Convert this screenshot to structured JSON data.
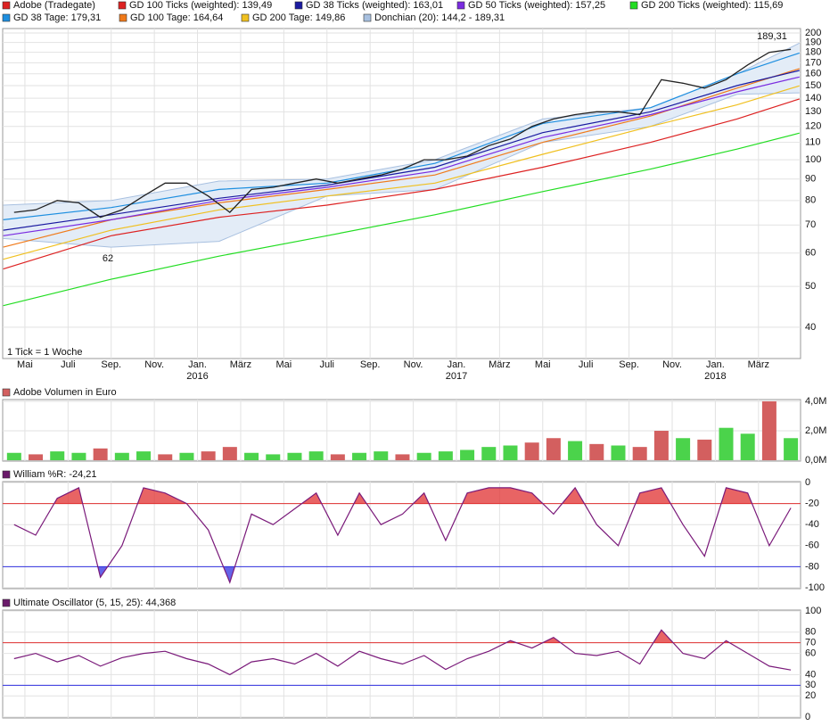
{
  "chart_data": [
    {
      "type": "line",
      "log_scale": true,
      "grid": true,
      "xlim": [
        -1.03,
        35.95
      ],
      "xticks": [
        {
          "value": 0,
          "label": "Mai"
        },
        {
          "value": 2,
          "label": "Juli"
        },
        {
          "value": 4,
          "label": "Sep."
        },
        {
          "value": 6,
          "label": "Nov."
        },
        {
          "value": 8,
          "label": "Jan."
        },
        {
          "value": 10,
          "label": "März"
        },
        {
          "value": 12,
          "label": "Mai"
        },
        {
          "value": 14,
          "label": "Juli"
        },
        {
          "value": 16,
          "label": "Sep."
        },
        {
          "value": 18,
          "label": "Nov."
        },
        {
          "value": 20,
          "label": "Jan."
        },
        {
          "value": 22,
          "label": "März"
        },
        {
          "value": 24,
          "label": "Mai"
        },
        {
          "value": 26,
          "label": "Juli"
        },
        {
          "value": 28,
          "label": "Sep."
        },
        {
          "value": 30,
          "label": "Nov."
        },
        {
          "value": 32,
          "label": "Jan."
        },
        {
          "value": 34,
          "label": "März"
        }
      ],
      "year_ticks": [
        {
          "value": 8,
          "label": "2016"
        },
        {
          "value": 20,
          "label": "2017"
        },
        {
          "value": 32,
          "label": "2018"
        }
      ],
      "ylim": [
        33.7,
        205
      ],
      "yticks": [
        40,
        50,
        60,
        70,
        80,
        90,
        100,
        110,
        120,
        130,
        140,
        150,
        160,
        170,
        180,
        190,
        200
      ],
      "series": [
        {
          "name": "Adobe (Tradegate)",
          "color": "#222222",
          "legend_color": "#dd2222",
          "x": [
            -0.5,
            0.5,
            1.5,
            2.5,
            3.5,
            4.5,
            5.5,
            6.5,
            7.5,
            8.5,
            9.5,
            10.5,
            11.5,
            12.5,
            13.5,
            14.5,
            15.5,
            16.5,
            17.5,
            18.5,
            19.5,
            20.5,
            21.5,
            22.5,
            23.5,
            24.5,
            25.5,
            26.5,
            27.5,
            28.5,
            29.5,
            30.5,
            31.5,
            32.5,
            33.5,
            34.5,
            35.5
          ],
          "values": [
            75,
            76,
            80,
            79,
            73,
            76,
            82,
            88,
            88,
            82,
            75,
            85,
            86,
            88,
            90,
            88,
            90,
            92,
            95,
            100,
            100,
            102,
            108,
            112,
            120,
            125,
            128,
            130,
            130,
            128,
            155,
            152,
            148,
            155,
            168,
            180,
            183
          ]
        },
        {
          "name": "GD 100 Ticks (weighted): 139,49",
          "color": "#dd2222",
          "x": [
            -1,
            4,
            9,
            14,
            19,
            24,
            29,
            33,
            35.9
          ],
          "values": [
            55,
            66,
            73,
            78,
            85,
            96,
            110,
            125,
            139.49
          ]
        },
        {
          "name": "GD 38 Ticks (weighted): 163,01",
          "color": "#1a1aa0",
          "x": [
            -1,
            4,
            9,
            14,
            19,
            24,
            29,
            33,
            35.9
          ],
          "values": [
            68,
            74,
            81,
            87,
            96,
            116,
            130,
            150,
            163.01
          ]
        },
        {
          "name": "GD 50 Ticks (weighted): 157,25",
          "color": "#7a2be0",
          "x": [
            -1,
            4,
            9,
            14,
            19,
            24,
            29,
            33,
            35.9
          ],
          "values": [
            66,
            72,
            80,
            86,
            94,
            113,
            128,
            145,
            157.25
          ]
        },
        {
          "name": "GD 200 Ticks (weighted): 115,69",
          "color": "#22dd22",
          "x": [
            -1,
            4,
            9,
            14,
            19,
            24,
            29,
            33,
            35.9
          ],
          "values": [
            45,
            52,
            59,
            66,
            74,
            84,
            95,
            106,
            115.69
          ]
        },
        {
          "name": "GD 38 Tage: 179,31",
          "color": "#1e8fe0",
          "x": [
            -1,
            4,
            9,
            14,
            19,
            24,
            29,
            33,
            35.9
          ],
          "values": [
            72,
            77,
            85,
            88,
            98,
            122,
            133,
            160,
            179.31
          ]
        },
        {
          "name": "GD 100 Tage: 164,64",
          "color": "#f07a1a",
          "x": [
            -1,
            4,
            9,
            14,
            19,
            24,
            29,
            33,
            35.9
          ],
          "values": [
            62,
            72,
            79,
            85,
            92,
            110,
            127,
            148,
            164.64
          ]
        },
        {
          "name": "GD 200 Tage: 149,86",
          "color": "#f0c020",
          "x": [
            -1,
            4,
            9,
            14,
            19,
            24,
            29,
            33,
            35.9
          ],
          "values": [
            58,
            68,
            76,
            82,
            88,
            103,
            120,
            135,
            149.86
          ]
        }
      ],
      "band": {
        "name": "Donchian (20): 144,2 - 189,31",
        "color": "#a8c0e0",
        "fill": "#e3ecf7",
        "x": [
          -1,
          4,
          9,
          14,
          19,
          24,
          29,
          33,
          35.9
        ],
        "upper": [
          78,
          80,
          89,
          90,
          100,
          125,
          133,
          160,
          189.31
        ],
        "lower": [
          65,
          62,
          64,
          82,
          85,
          110,
          120,
          143,
          144.2
        ]
      },
      "annotations": [
        "189,31",
        "62",
        "1 Tick = 1 Woche"
      ]
    },
    {
      "type": "bar",
      "title": "Adobe Volumen in Euro",
      "legend_color": "#d35f5f",
      "xlim": [
        -1.03,
        35.95
      ],
      "x": [
        -0.5,
        0.5,
        1.5,
        2.5,
        3.5,
        4.5,
        5.5,
        6.5,
        7.5,
        8.5,
        9.5,
        10.5,
        11.5,
        12.5,
        13.5,
        14.5,
        15.5,
        16.5,
        17.5,
        18.5,
        19.5,
        20.5,
        21.5,
        22.5,
        23.5,
        24.5,
        25.5,
        26.5,
        27.5,
        28.5,
        29.5,
        30.5,
        31.5,
        32.5,
        33.5,
        34.5,
        35.5
      ],
      "values": [
        0.5,
        0.4,
        0.6,
        0.5,
        0.8,
        0.5,
        0.6,
        0.4,
        0.5,
        0.6,
        0.9,
        0.5,
        0.4,
        0.5,
        0.6,
        0.4,
        0.5,
        0.6,
        0.4,
        0.5,
        0.6,
        0.7,
        0.9,
        1.0,
        1.2,
        1.5,
        1.3,
        1.1,
        1.0,
        0.9,
        2.0,
        1.5,
        1.4,
        2.2,
        1.8,
        4.0,
        1.5
      ],
      "colors": [
        "#4bd34b",
        "#d35f5f",
        "#4bd34b",
        "#4bd34b",
        "#d35f5f",
        "#4bd34b",
        "#4bd34b",
        "#d35f5f",
        "#4bd34b",
        "#d35f5f",
        "#d35f5f",
        "#4bd34b",
        "#4bd34b",
        "#4bd34b",
        "#4bd34b",
        "#d35f5f",
        "#4bd34b",
        "#4bd34b",
        "#d35f5f",
        "#4bd34b",
        "#4bd34b",
        "#4bd34b",
        "#4bd34b",
        "#4bd34b",
        "#d35f5f",
        "#d35f5f",
        "#4bd34b",
        "#d35f5f",
        "#4bd34b",
        "#d35f5f",
        "#d35f5f",
        "#4bd34b",
        "#d35f5f",
        "#4bd34b",
        "#4bd34b",
        "#d35f5f",
        "#4bd34b"
      ],
      "ylim": [
        -0.06,
        4.12
      ],
      "yticks": [
        {
          "value": 0,
          "label": "0,0M"
        },
        {
          "value": 2,
          "label": "2,0M"
        },
        {
          "value": 4,
          "label": "4,0M"
        }
      ]
    },
    {
      "type": "oscillator",
      "title": "William %R: -24,21",
      "legend_color": "#6a1a6a",
      "color": "#7a1a7a",
      "xlim": [
        -1.03,
        35.95
      ],
      "x": [
        -0.5,
        0.5,
        1.5,
        2.5,
        3.5,
        4.5,
        5.5,
        6.5,
        7.5,
        8.5,
        9.5,
        10.5,
        11.5,
        12.5,
        13.5,
        14.5,
        15.5,
        16.5,
        17.5,
        18.5,
        19.5,
        20.5,
        21.5,
        22.5,
        23.5,
        24.5,
        25.5,
        26.5,
        27.5,
        28.5,
        29.5,
        30.5,
        31.5,
        32.5,
        33.5,
        34.5,
        35.5
      ],
      "values": [
        -40,
        -50,
        -15,
        -5,
        -90,
        -60,
        -5,
        -10,
        -20,
        -45,
        -95,
        -30,
        -40,
        -25,
        -10,
        -50,
        -10,
        -40,
        -30,
        -10,
        -55,
        -10,
        -5,
        -5,
        -10,
        -30,
        -5,
        -40,
        -60,
        -10,
        -5,
        -40,
        -70,
        -5,
        -10,
        -60,
        -24.21
      ],
      "ylim": [
        -100.8,
        0.8
      ],
      "yticks": [
        -100,
        -80,
        -60,
        -40,
        -20,
        0
      ],
      "levels": [
        {
          "value": -20,
          "color": "#e03030",
          "fill": "above"
        },
        {
          "value": -80,
          "color": "#3030e0",
          "fill": "below"
        }
      ]
    },
    {
      "type": "oscillator",
      "title": "Ultimate Oscillator (5, 15, 25): 44,368",
      "legend_color": "#6a1a6a",
      "color": "#7a1a7a",
      "xlim": [
        -1.03,
        35.95
      ],
      "x": [
        -0.5,
        0.5,
        1.5,
        2.5,
        3.5,
        4.5,
        5.5,
        6.5,
        7.5,
        8.5,
        9.5,
        10.5,
        11.5,
        12.5,
        13.5,
        14.5,
        15.5,
        16.5,
        17.5,
        18.5,
        19.5,
        20.5,
        21.5,
        22.5,
        23.5,
        24.5,
        25.5,
        26.5,
        27.5,
        28.5,
        29.5,
        30.5,
        31.5,
        32.5,
        33.5,
        34.5,
        35.5
      ],
      "values": [
        55,
        60,
        52,
        58,
        48,
        56,
        60,
        62,
        55,
        50,
        40,
        52,
        55,
        50,
        60,
        48,
        62,
        55,
        50,
        58,
        45,
        55,
        62,
        72,
        65,
        75,
        60,
        58,
        62,
        50,
        82,
        60,
        55,
        72,
        60,
        48,
        44.368
      ],
      "ylim": [
        -0.8,
        100.8
      ],
      "yticks": [
        0,
        20,
        30,
        40,
        60,
        70,
        80,
        100
      ],
      "levels": [
        {
          "value": 70,
          "color": "#e03030",
          "fill": "above"
        },
        {
          "value": 30,
          "color": "#3030e0",
          "fill": "below"
        }
      ]
    }
  ]
}
